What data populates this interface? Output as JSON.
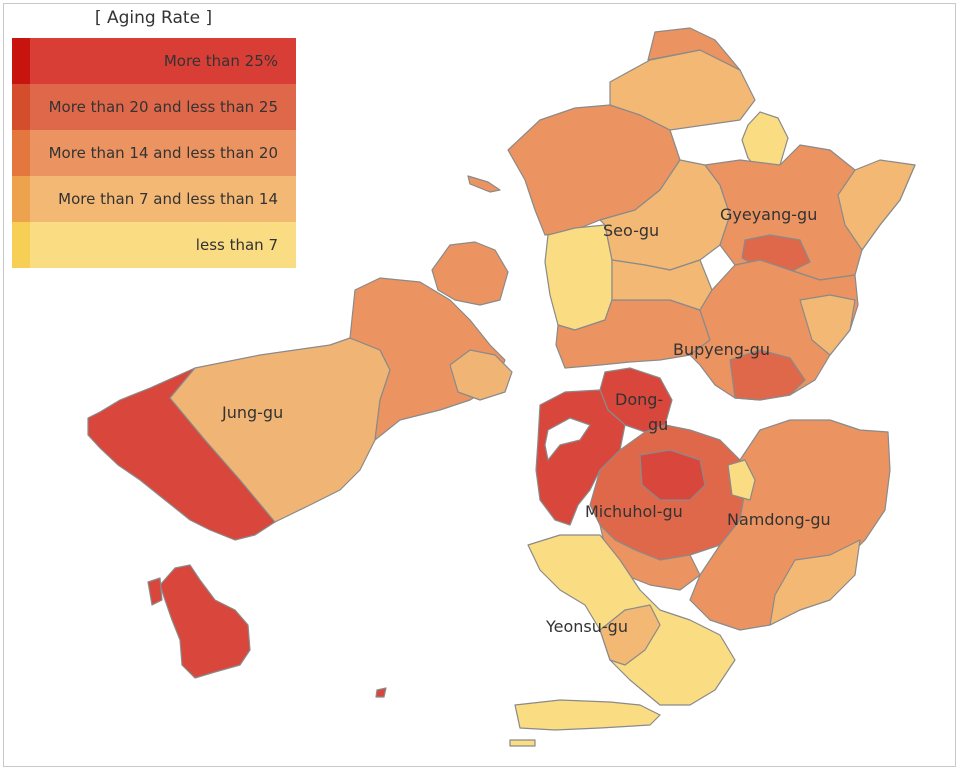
{
  "legend": {
    "title": "[ Aging Rate ]",
    "items": [
      {
        "label": "More than 25%",
        "color": "#d93e36",
        "accent": "#c8140f"
      },
      {
        "label": "More than 20 and less  than 25",
        "color": "#e0684a",
        "accent": "#d44d2c"
      },
      {
        "label": "More than 14 and less than 20",
        "color": "#eb9461",
        "accent": "#e4773d"
      },
      {
        "label": "More than 7 and less than 14",
        "color": "#f2b874",
        "accent": "#eda34d"
      },
      {
        "label": "less than 7",
        "color": "#fadc82",
        "accent": "#f8cf55"
      }
    ]
  },
  "districts": {
    "seo_gu": "Seo-gu",
    "gyeyang_gu": "Gyeyang-gu",
    "bupyeng_gu": "Bupyeng-gu",
    "jung_gu": "Jung-gu",
    "dong_gu_line1": "Dong-",
    "dong_gu_line2": "gu",
    "michuhol_gu": "Michuhol-gu",
    "namdong_gu": "Namdong-gu",
    "yeonsu_gu": "Yeonsu-gu"
  }
}
